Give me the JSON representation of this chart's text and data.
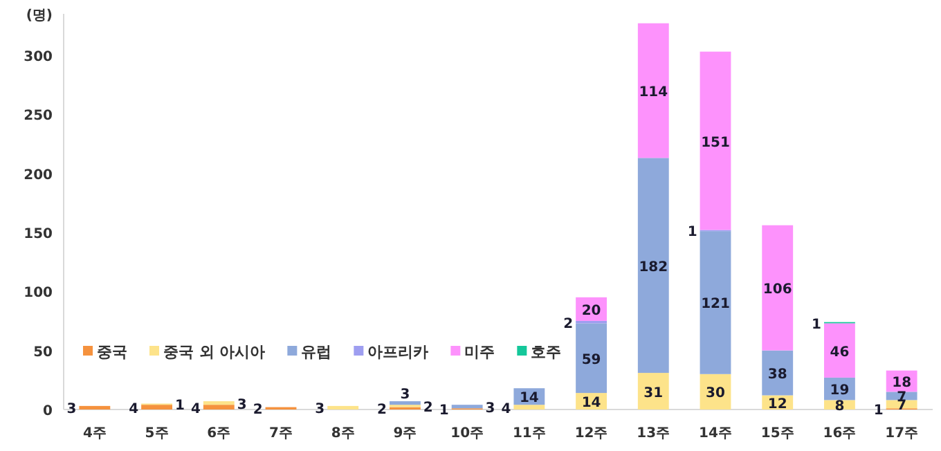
{
  "chart_data": {
    "type": "bar",
    "ylabel": "(명)",
    "categories": [
      "4주",
      "5주",
      "6주",
      "7주",
      "8주",
      "9주",
      "10주",
      "11주",
      "12주",
      "13주",
      "14주",
      "15주",
      "16주",
      "17주"
    ],
    "stacked": true,
    "data_labels": true,
    "ylim": [
      0,
      335
    ],
    "yticks": [
      0,
      50,
      100,
      150,
      200,
      250,
      300
    ],
    "legend": "bottom left",
    "series": [
      {
        "name": "중국",
        "color": "#f5923e",
        "values": [
          3,
          4,
          4,
          2,
          null,
          2,
          1,
          null,
          null,
          null,
          null,
          null,
          null,
          1
        ]
      },
      {
        "name": "중국 외 아시아",
        "color": "#fde38a",
        "values": [
          null,
          1,
          3,
          null,
          3,
          2,
          null,
          4,
          14,
          31,
          30,
          12,
          8,
          7
        ]
      },
      {
        "name": "유럽",
        "color": "#8ea9db",
        "values": [
          null,
          null,
          null,
          null,
          null,
          3,
          3,
          14,
          59,
          182,
          121,
          38,
          19,
          7
        ]
      },
      {
        "name": "아프리카",
        "color": "#9e9ef0",
        "values": [
          null,
          null,
          null,
          null,
          null,
          null,
          null,
          null,
          2,
          null,
          1,
          null,
          null,
          null
        ]
      },
      {
        "name": "미주",
        "color": "#fd92fc",
        "values": [
          null,
          null,
          null,
          null,
          null,
          null,
          null,
          null,
          20,
          114,
          151,
          106,
          46,
          18
        ]
      },
      {
        "name": "호주",
        "color": "#14c79a",
        "values": [
          null,
          null,
          null,
          null,
          null,
          null,
          null,
          null,
          null,
          null,
          null,
          null,
          1,
          null
        ]
      }
    ]
  }
}
